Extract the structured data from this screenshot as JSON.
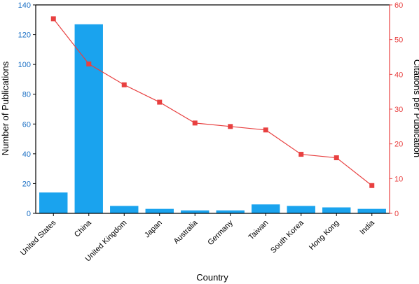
{
  "chart_data": {
    "type": "bar+line",
    "xlabel": "Country",
    "categories": [
      "United States",
      "China",
      "United Kingdom",
      "Japan",
      "Australia",
      "Germany",
      "Taiwan",
      "South Korea",
      "Hong Kong",
      "India"
    ],
    "series": [
      {
        "name": "Number of Publications",
        "type": "bar",
        "axis": "left",
        "color": "#1aa3ee",
        "values": [
          14,
          127,
          5,
          3,
          2,
          2,
          6,
          5,
          4,
          3
        ]
      },
      {
        "name": "Citations per Publication",
        "type": "line",
        "axis": "right",
        "color": "#e84040",
        "marker": "square",
        "values": [
          56,
          43,
          37,
          32,
          26,
          25,
          24,
          17,
          16,
          8
        ]
      }
    ],
    "y_left": {
      "label": "Number of Publications",
      "range": [
        0,
        140
      ],
      "ticks": [
        0,
        20,
        40,
        60,
        80,
        100,
        120,
        140
      ],
      "color": "#1a6fc4"
    },
    "y_right": {
      "label": "Citations per Publication",
      "range": [
        0,
        60
      ],
      "ticks": [
        0,
        10,
        20,
        30,
        40,
        50,
        60
      ],
      "color": "#e84040"
    },
    "grid": false,
    "legend": "none"
  }
}
